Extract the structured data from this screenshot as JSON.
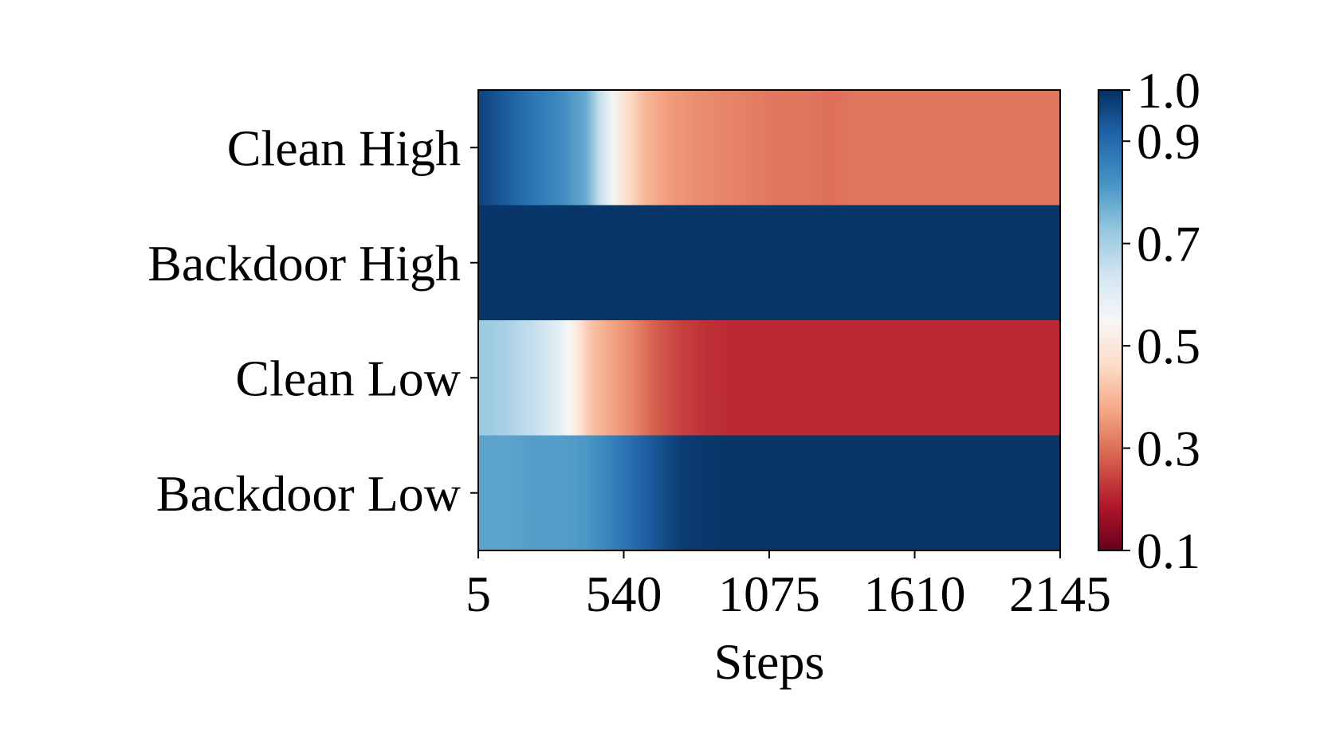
{
  "chart_data": {
    "type": "heatmap",
    "xlabel": "Steps",
    "ylabel": "",
    "x_ticks": [
      5,
      540,
      1075,
      1610,
      2145
    ],
    "xlim": [
      5,
      2145
    ],
    "rows": [
      "Clean High",
      "Backdoor High",
      "Clean Low",
      "Backdoor Low"
    ],
    "colorbar": {
      "colormap": "RdBu",
      "range": [
        0.1,
        1.0
      ],
      "ticks": [
        1.0,
        0.9,
        0.7,
        0.5,
        0.3,
        0.1
      ],
      "tick_labels": [
        "1.0",
        "0.9",
        "0.7",
        "0.5",
        "0.3",
        "0.1"
      ]
    },
    "series": [
      {
        "name": "Clean High",
        "x": [
          5,
          100,
          200,
          300,
          400,
          450,
          500,
          560,
          620,
          700,
          800,
          900,
          1000,
          1100,
          1200,
          1300,
          1400,
          1500,
          1600,
          1700,
          1800,
          1900,
          2000,
          2145
        ],
        "values": [
          0.97,
          0.93,
          0.88,
          0.84,
          0.78,
          0.66,
          0.56,
          0.46,
          0.4,
          0.36,
          0.34,
          0.33,
          0.32,
          0.31,
          0.31,
          0.3,
          0.31,
          0.31,
          0.31,
          0.31,
          0.31,
          0.31,
          0.31,
          0.31
        ]
      },
      {
        "name": "Backdoor High",
        "x": [
          5,
          500,
          1000,
          1500,
          2145
        ],
        "values": [
          0.99,
          0.99,
          0.99,
          0.99,
          0.99
        ]
      },
      {
        "name": "Clean Low",
        "x": [
          5,
          100,
          200,
          300,
          340,
          380,
          420,
          480,
          560,
          650,
          750,
          850,
          950,
          1100,
          1300,
          1500,
          1700,
          1900,
          2145
        ],
        "values": [
          0.72,
          0.7,
          0.66,
          0.6,
          0.55,
          0.48,
          0.42,
          0.38,
          0.34,
          0.28,
          0.24,
          0.22,
          0.21,
          0.21,
          0.21,
          0.21,
          0.21,
          0.21,
          0.21
        ]
      },
      {
        "name": "Backdoor Low",
        "x": [
          5,
          100,
          200,
          300,
          400,
          450,
          500,
          560,
          620,
          680,
          760,
          900,
          1200,
          1600,
          2145
        ],
        "values": [
          0.79,
          0.79,
          0.8,
          0.8,
          0.81,
          0.83,
          0.86,
          0.89,
          0.92,
          0.95,
          0.98,
          0.99,
          0.99,
          0.99,
          0.99
        ]
      }
    ]
  }
}
